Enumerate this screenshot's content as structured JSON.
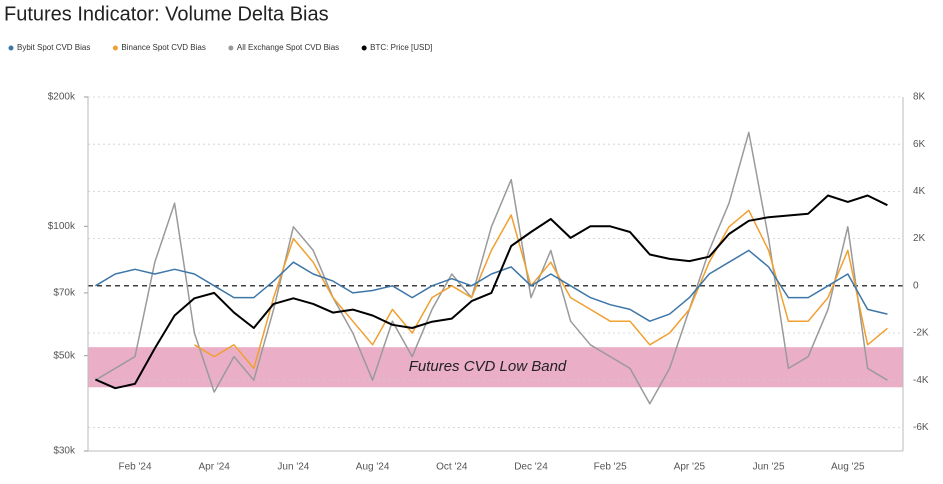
{
  "chart_data": {
    "type": "line",
    "title": "Futures Indicator: Volume Delta Bias",
    "categories": [
      null,
      null,
      "Feb '24",
      null,
      null,
      null,
      "Apr '24",
      null,
      null,
      null,
      "Jun '24",
      null,
      null,
      null,
      "Aug '24",
      null,
      null,
      null,
      "Oct '24",
      null,
      null,
      null,
      "Dec '24",
      null,
      null,
      null,
      "Feb '25",
      null,
      null,
      null,
      "Apr '25",
      null,
      null,
      null,
      "Jun '25",
      null,
      null,
      null,
      "Aug '25",
      null,
      null
    ],
    "series": [
      {
        "name": "Bybit Spot CVD Bias",
        "color": "#3d76a8",
        "axis": "y2",
        "values": [
          0,
          500,
          700,
          500,
          700,
          500,
          0,
          -500,
          -500,
          200,
          1000,
          500,
          200,
          -300,
          -200,
          0,
          -500,
          0,
          300,
          0,
          500,
          800,
          0,
          500,
          0,
          -500,
          -800,
          -1000,
          -1500,
          -1200,
          -500,
          500,
          1000,
          1500,
          800,
          -500,
          -500,
          0,
          500,
          -1000,
          -1200
        ]
      },
      {
        "name": "Binance Spot CVD Bias",
        "color": "#f0a030",
        "axis": "y2",
        "values": [
          null,
          null,
          null,
          null,
          null,
          -2500,
          -3000,
          -2500,
          -3500,
          -500,
          2000,
          1000,
          -500,
          -1500,
          -2500,
          -1000,
          -2000,
          -500,
          0,
          -500,
          1500,
          3000,
          0,
          1000,
          -500,
          -1000,
          -1500,
          -1500,
          -2500,
          -2000,
          -1000,
          1000,
          2500,
          3200,
          1500,
          -1500,
          -1500,
          -500,
          1500,
          -2500,
          -1800
        ]
      },
      {
        "name": "All Exchange Spot CVD Bias",
        "color": "#9a9a9a",
        "axis": "y2",
        "values": [
          -4000,
          -3500,
          -3000,
          1000,
          3500,
          -2000,
          -4500,
          -3000,
          -4000,
          -1000,
          2500,
          1500,
          -500,
          -2000,
          -4000,
          -1500,
          -3000,
          -1000,
          500,
          -500,
          2500,
          4500,
          -500,
          1500,
          -1500,
          -2500,
          -3000,
          -3500,
          -5000,
          -3500,
          -1000,
          1500,
          3500,
          6500,
          2000,
          -3500,
          -3000,
          -1000,
          2500,
          -3500,
          -4000
        ]
      },
      {
        "name": "BTC: Price [USD]",
        "color": "#000000",
        "axis": "y",
        "values": [
          44000,
          42000,
          43000,
          52000,
          62000,
          68000,
          70000,
          63000,
          58000,
          66000,
          68000,
          66000,
          63000,
          64000,
          62000,
          59000,
          58000,
          60000,
          61000,
          67000,
          70000,
          90000,
          97000,
          104000,
          94000,
          100000,
          100000,
          97000,
          86000,
          84000,
          83000,
          85000,
          96000,
          103000,
          105000,
          106000,
          107000,
          118000,
          114000,
          118000,
          112000
        ]
      }
    ],
    "log_y": true,
    "ylim": [
      30000,
      200000
    ],
    "yticks": [
      {
        "value": 30000,
        "label": "$30k"
      },
      {
        "value": 50000,
        "label": "$50k"
      },
      {
        "value": 70000,
        "label": "$70k"
      },
      {
        "value": 100000,
        "label": "$100k"
      },
      {
        "value": 200000,
        "label": "$200k"
      }
    ],
    "y2lim": [
      -7000,
      8000
    ],
    "y2ticks": [
      {
        "value": 8000,
        "label": "8K"
      },
      {
        "value": 6000,
        "label": "6K"
      },
      {
        "value": 4000,
        "label": "4K"
      },
      {
        "value": 2000,
        "label": "2K"
      },
      0,
      {
        "value": -2000,
        "label": "-2K"
      },
      {
        "value": -4000,
        "label": "-4K"
      },
      {
        "value": -6000,
        "label": "-6K"
      }
    ],
    "grid": true,
    "zero_line": true,
    "band": {
      "label": "Futures CVD Low Band",
      "range": [
        -2600,
        -4300
      ],
      "color": "#e8a0bd"
    }
  }
}
